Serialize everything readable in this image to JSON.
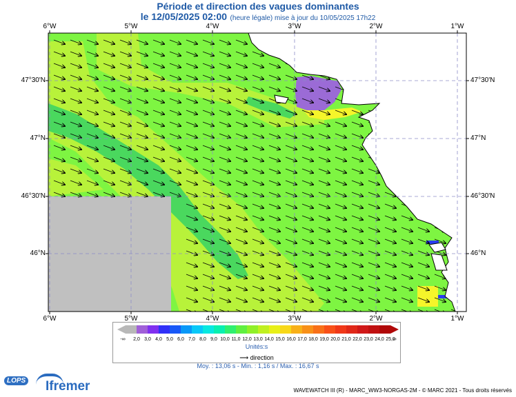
{
  "header": {
    "title": "Période et direction des vagues dominantes",
    "date_line": "le 12/05/2025 02:00",
    "update_line": "(heure légale) mise à jour du 10/05/2025 17h22"
  },
  "map": {
    "lon_labels": [
      "6°W",
      "5°W",
      "4°W",
      "3°W",
      "2°W",
      "1°W"
    ],
    "lat_labels": [
      "47°30'N",
      "47°N",
      "46°30'N",
      "46°N"
    ],
    "colors": {
      "sea_main": "#7ef542",
      "sea_light": "#b8f23a",
      "sea_dark": "#4ad85e",
      "purple": "#9b6bd6",
      "yellow": "#f5f52a",
      "blue": "#2a3cf0",
      "no_data": "#c0c0c0",
      "land": "#ffffff"
    }
  },
  "legend": {
    "values": [
      "-∞",
      "2,0",
      "3,0",
      "4,0",
      "5,0",
      "6,0",
      "7,0",
      "8,0",
      "9,0",
      "10,0",
      "11,0",
      "12,0",
      "13,0",
      "14,0",
      "15,0",
      "16,0",
      "17,0",
      "18,0",
      "19,0",
      "20,0",
      "21,0",
      "22,0",
      "23,0",
      "24,0",
      "25,0",
      "∞"
    ],
    "colors": [
      "#b8b8b8",
      "#a060d8",
      "#8030f0",
      "#3030f8",
      "#1858f8",
      "#0898f8",
      "#08c8f8",
      "#08e8e0",
      "#08f0b0",
      "#30f070",
      "#60f040",
      "#90f028",
      "#c0f020",
      "#e8f018",
      "#f8d818",
      "#f8b018",
      "#f89018",
      "#f87018",
      "#f85018",
      "#f03818",
      "#e02818",
      "#d01818",
      "#c01010",
      "#b00808"
    ],
    "unit": "Unités:s",
    "direction_label": "direction"
  },
  "stats": "Moy. : 13,06 s   -   Min. : 1,16 s / Max. : 16,67 s",
  "credit": "WAVEWATCH III (R) - MARC_WW3-NORGAS-2M - © MARC 2021 - Tous droits réservés",
  "logos": {
    "lops": "LOPS",
    "ifremer": "Ifremer"
  }
}
